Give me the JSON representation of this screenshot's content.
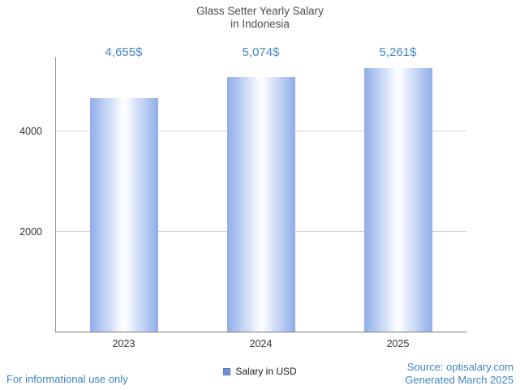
{
  "title": {
    "line1": "Glass Setter Yearly Salary",
    "line2": "in Indonesia"
  },
  "chart_data": {
    "type": "bar",
    "title": "Glass Setter Yearly Salary in Indonesia",
    "categories": [
      "2023",
      "2024",
      "2025"
    ],
    "values": [
      4655,
      5074,
      5261
    ],
    "value_labels": [
      "4,655$",
      "5,074$",
      "5,261$"
    ],
    "xlabel": "",
    "ylabel": "",
    "ylim": [
      0,
      5480
    ],
    "yticks": [
      2000,
      4000
    ],
    "grid": true,
    "legend_position": "bottom",
    "legend": [
      {
        "label": "Salary in USD",
        "color": "#6f8fd2"
      }
    ]
  },
  "footer": {
    "disclaimer": "For informational use only",
    "source": "Source: optisalary.com",
    "generated": "Generated March 2025"
  },
  "colors": {
    "value_label_blue": "#4a86c8",
    "footer_blue": "#3d85c6",
    "bar_edge": "#8fadea",
    "bar_center": "#fcfdff",
    "legend_swatch": "#6f8fd2",
    "gridline": "#d4d4d4",
    "axis": "#7a7a7a",
    "title_text": "#4d4d4d",
    "tick_text": "#333333"
  }
}
